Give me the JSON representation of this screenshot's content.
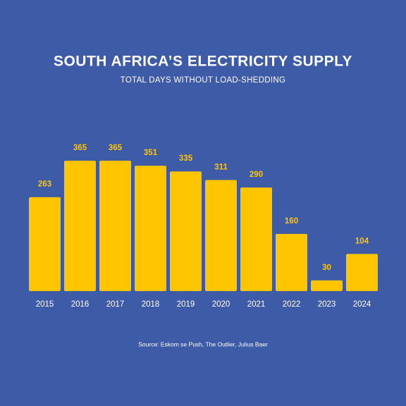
{
  "chart_data": {
    "type": "bar",
    "title": "SOUTH AFRICA’S ELECTRICITY SUPPLY",
    "subtitle": "TOTAL DAYS WITHOUT LOAD-SHEDDING",
    "source": "Source: Eskom se Push, The Outlier, Julius Baer",
    "categories": [
      "2015",
      "2016",
      "2017",
      "2018",
      "2019",
      "2020",
      "2021",
      "2022",
      "2023",
      "2024"
    ],
    "values": [
      263,
      365,
      365,
      351,
      335,
      311,
      290,
      160,
      30,
      104
    ],
    "color": "#ffc500",
    "background": "#3e5ba8"
  }
}
